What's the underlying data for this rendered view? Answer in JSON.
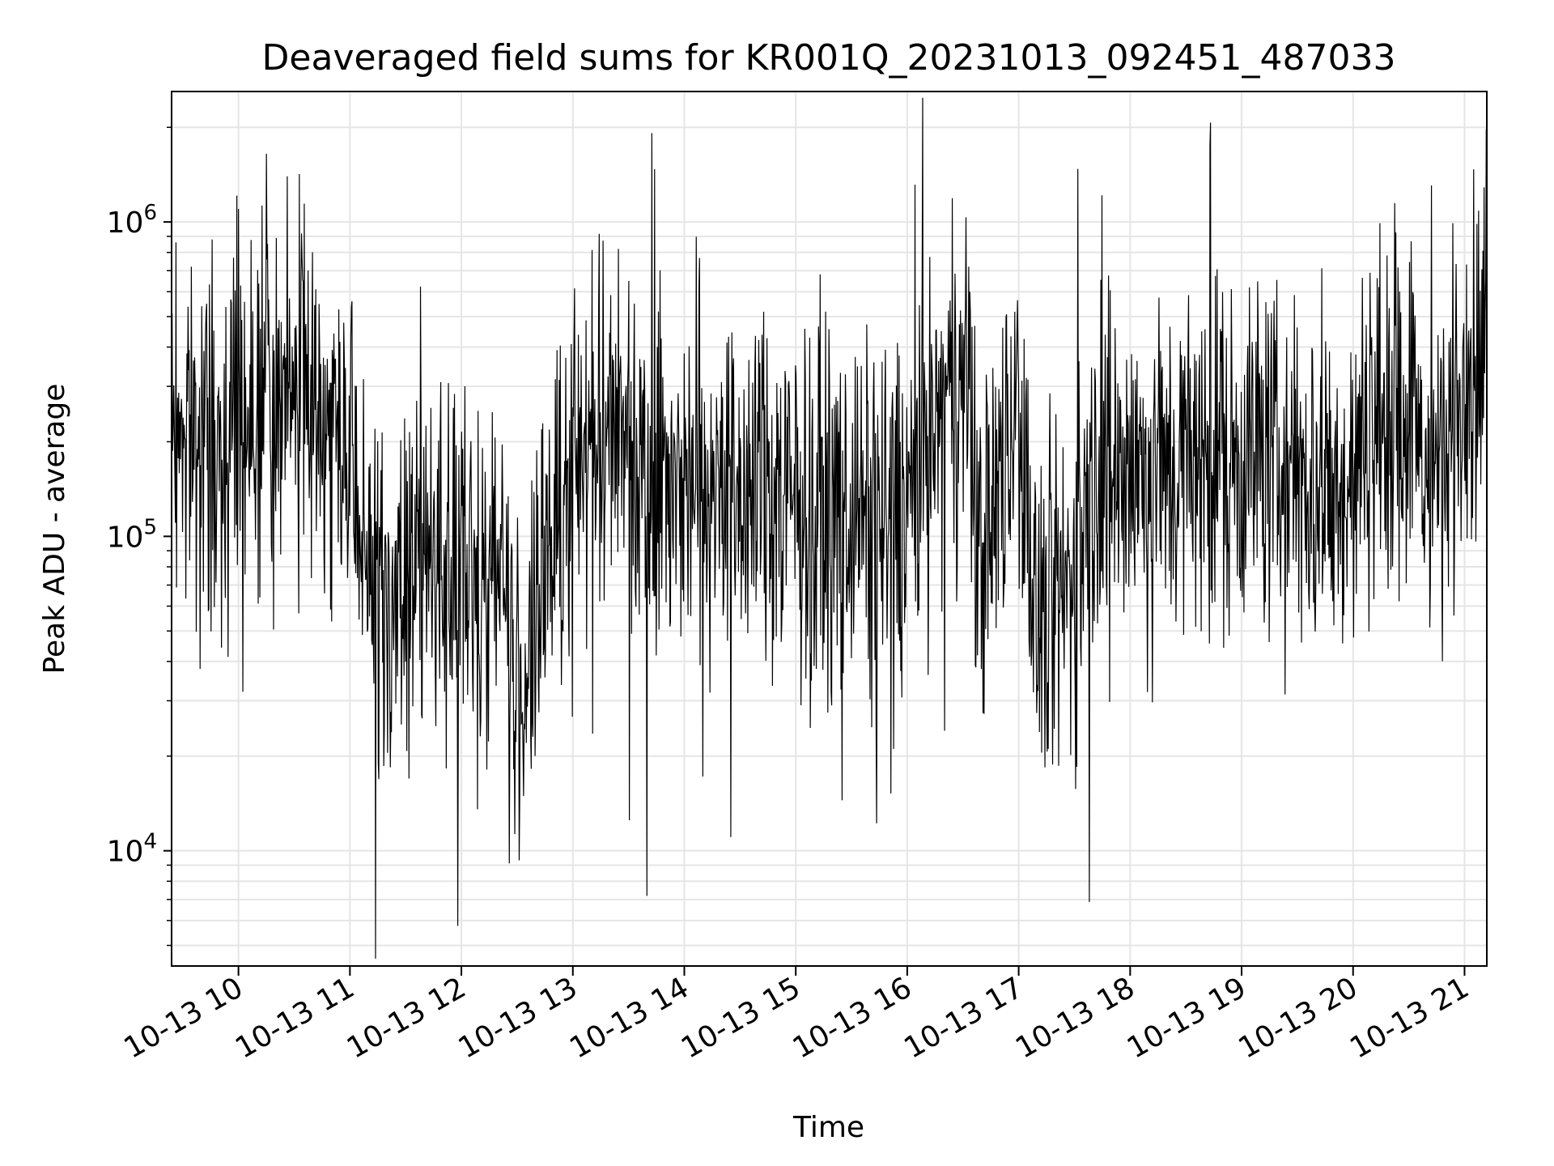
{
  "chart_data": {
    "type": "line",
    "title": "Deaveraged field sums for KR001Q_20231013_092451_487033",
    "xlabel": "Time",
    "ylabel": "Peak ADU - average",
    "yscale": "log",
    "ylim": [
      4300,
      2600000
    ],
    "xlim": [
      "2023-10-13 09:24",
      "2023-10-13 21:12"
    ],
    "grid": true,
    "x_ticks": [
      "10-13 10",
      "10-13 11",
      "10-13 12",
      "10-13 13",
      "10-13 14",
      "10-13 15",
      "10-13 16",
      "10-13 17",
      "10-13 18",
      "10-13 19",
      "10-13 20",
      "10-13 21"
    ],
    "y_ticks": [
      {
        "base": "10",
        "exp": "4",
        "value": 10000
      },
      {
        "base": "10",
        "exp": "5",
        "value": 100000
      },
      {
        "base": "10",
        "exp": "6",
        "value": 1000000
      }
    ],
    "line_color": "#000000",
    "grid_color": "#e5e5e5",
    "series": [
      {
        "x": [
          "09:24",
          "09:30",
          "09:40",
          "09:50",
          "10:00",
          "10:10",
          "10:20",
          "10:30",
          "10:40",
          "10:50",
          "11:00",
          "11:10",
          "11:20",
          "11:30",
          "11:40",
          "11:50",
          "12:00",
          "12:10",
          "12:20",
          "12:30",
          "12:40",
          "12:50",
          "13:00",
          "13:10",
          "13:20",
          "13:30",
          "13:40",
          "13:50",
          "14:00",
          "14:10",
          "14:20",
          "14:30",
          "14:40",
          "14:50",
          "15:00",
          "15:10",
          "15:20",
          "15:30",
          "15:40",
          "15:50",
          "16:00",
          "16:10",
          "16:20",
          "16:30",
          "16:40",
          "16:50",
          "17:00",
          "17:10",
          "17:20",
          "17:30",
          "17:40",
          "17:50",
          "18:00",
          "18:10",
          "18:20",
          "18:30",
          "18:40",
          "18:50",
          "19:00",
          "19:10",
          "19:20",
          "19:30",
          "19:40",
          "19:50",
          "20:00",
          "20:10",
          "20:20",
          "20:30",
          "20:40",
          "20:50",
          "21:00",
          "21:10"
        ],
        "values": [
          250000,
          220000,
          200000,
          160000,
          300000,
          260000,
          240000,
          330000,
          280000,
          220000,
          160000,
          65000,
          60000,
          58000,
          72000,
          85000,
          75000,
          68000,
          95000,
          30000,
          45000,
          95000,
          180000,
          210000,
          230000,
          190000,
          170000,
          160000,
          150000,
          145000,
          155000,
          140000,
          135000,
          140000,
          120000,
          130000,
          115000,
          125000,
          110000,
          115000,
          130000,
          170000,
          250000,
          320000,
          75000,
          150000,
          300000,
          45000,
          60000,
          75000,
          150000,
          160000,
          170000,
          160000,
          165000,
          170000,
          175000,
          210000,
          180000,
          190000,
          165000,
          150000,
          140000,
          135000,
          140000,
          240000,
          280000,
          260000,
          150000,
          180000,
          320000,
          380000
        ]
      }
    ]
  }
}
